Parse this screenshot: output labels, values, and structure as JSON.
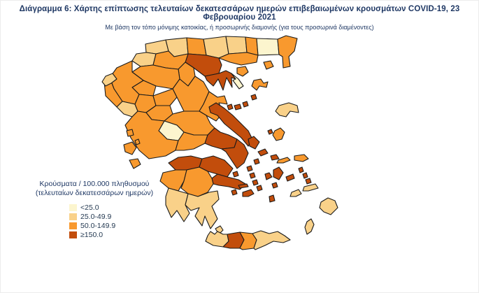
{
  "header": {
    "title": "Διάγραμμα 6: Χάρτης επίπτωσης τελευταίων δεκατεσσάρων ημερών επιβεβαιωμένων κρουσμάτων COVID-19, 23 Φεβρουαρίου 2021",
    "subtitle": "Με βάση τον τόπο μόνιμης κατοικίας, ή προσωρινής διαμονής (για τους προσωρινά διαμένοντες)"
  },
  "legend": {
    "title_line1": "Κρούσματα / 100.000 πληθυσμού",
    "title_line2": "(τελευταίων δεκατεσσάρων ημερών)",
    "items": [
      {
        "key": "lt25",
        "label": "<25.0",
        "color": "#FCF5CE"
      },
      {
        "key": "25_49",
        "label": "25.0-49.9",
        "color": "#F9D189"
      },
      {
        "key": "50_149",
        "label": "50.0-149.9",
        "color": "#F8992E"
      },
      {
        "key": "ge150",
        "label": "≥150.0",
        "color": "#C24D0C"
      }
    ]
  },
  "map": {
    "border_color": "#1a1a1a",
    "sea_color": "#ffffff",
    "regions": [
      {
        "id": "florina",
        "category": "25_49"
      },
      {
        "id": "kastoria",
        "category": "25_49"
      },
      {
        "id": "pella",
        "category": "25_49"
      },
      {
        "id": "kilkis",
        "category": "50_149"
      },
      {
        "id": "serres",
        "category": "25_49"
      },
      {
        "id": "drama",
        "category": "25_49"
      },
      {
        "id": "xanthi",
        "category": "50_149"
      },
      {
        "id": "rodopi",
        "category": "lt25"
      },
      {
        "id": "evros",
        "category": "50_149"
      },
      {
        "id": "kavala",
        "category": "50_149"
      },
      {
        "id": "thessaloniki",
        "category": "ge150"
      },
      {
        "id": "chalkidiki",
        "category": "ge150"
      },
      {
        "id": "athos",
        "category": "lt25"
      },
      {
        "id": "imathia",
        "category": "50_149"
      },
      {
        "id": "pieria",
        "category": "50_149"
      },
      {
        "id": "kozani",
        "category": "50_149"
      },
      {
        "id": "grevena",
        "category": "50_149"
      },
      {
        "id": "ioannina",
        "category": "50_149"
      },
      {
        "id": "thesprotia",
        "category": "50_149"
      },
      {
        "id": "preveza",
        "category": "25_49"
      },
      {
        "id": "arta",
        "category": "50_149"
      },
      {
        "id": "trikala",
        "category": "50_149"
      },
      {
        "id": "larissa",
        "category": "50_149"
      },
      {
        "id": "karditsa",
        "category": "50_149"
      },
      {
        "id": "magnisia",
        "category": "50_149"
      },
      {
        "id": "skiathos",
        "category": "ge150"
      },
      {
        "id": "skopelos",
        "category": "ge150"
      },
      {
        "id": "alonnisos",
        "category": "ge150"
      },
      {
        "id": "fthiotida",
        "category": "50_149"
      },
      {
        "id": "evrytania",
        "category": "lt25"
      },
      {
        "id": "aetolia",
        "category": "50_149"
      },
      {
        "id": "fokida",
        "category": "50_149"
      },
      {
        "id": "viotia",
        "category": "ge150"
      },
      {
        "id": "attiki",
        "category": "ge150"
      },
      {
        "id": "evia",
        "category": "ge150"
      },
      {
        "id": "achaia",
        "category": "ge150"
      },
      {
        "id": "korinthia",
        "category": "ge150"
      },
      {
        "id": "argolida",
        "category": "ge150"
      },
      {
        "id": "ilia",
        "category": "50_149"
      },
      {
        "id": "arkadia",
        "category": "50_149"
      },
      {
        "id": "messinia",
        "category": "25_49"
      },
      {
        "id": "lakonia",
        "category": "25_49"
      },
      {
        "id": "corfu",
        "category": "25_49"
      },
      {
        "id": "lefkada",
        "category": "50_149"
      },
      {
        "id": "ithaki",
        "category": "50_149"
      },
      {
        "id": "kefalonia",
        "category": "50_149"
      },
      {
        "id": "zakynthos",
        "category": "50_149"
      },
      {
        "id": "kythira",
        "category": "25_49"
      },
      {
        "id": "thasos",
        "category": "50_149"
      },
      {
        "id": "samothraki",
        "category": "50_149"
      },
      {
        "id": "limnos",
        "category": "50_149"
      },
      {
        "id": "agios_efstratios",
        "category": "ge150"
      },
      {
        "id": "lesvos",
        "category": "25_49"
      },
      {
        "id": "psara",
        "category": "ge150"
      },
      {
        "id": "chios",
        "category": "50_149"
      },
      {
        "id": "samos",
        "category": "50_149"
      },
      {
        "id": "ikaria",
        "category": "50_149"
      },
      {
        "id": "andros",
        "category": "ge150"
      },
      {
        "id": "tinos",
        "category": "ge150"
      },
      {
        "id": "mykonos",
        "category": "ge150"
      },
      {
        "id": "syros",
        "category": "ge150"
      },
      {
        "id": "kea",
        "category": "ge150"
      },
      {
        "id": "kythnos",
        "category": "ge150"
      },
      {
        "id": "serifos",
        "category": "ge150"
      },
      {
        "id": "sifnos",
        "category": "ge150"
      },
      {
        "id": "milos",
        "category": "ge150"
      },
      {
        "id": "paros",
        "category": "ge150"
      },
      {
        "id": "naxos",
        "category": "ge150"
      },
      {
        "id": "ios",
        "category": "ge150"
      },
      {
        "id": "santorini",
        "category": "ge150"
      },
      {
        "id": "amorgos",
        "category": "ge150"
      },
      {
        "id": "patmos",
        "category": "ge150"
      },
      {
        "id": "leros",
        "category": "ge150"
      },
      {
        "id": "kalymnos",
        "category": "ge150"
      },
      {
        "id": "kos",
        "category": "25_49"
      },
      {
        "id": "astypalea",
        "category": "25_49"
      },
      {
        "id": "rhodes",
        "category": "25_49"
      },
      {
        "id": "karpathos",
        "category": "25_49"
      },
      {
        "id": "aegina",
        "category": "ge150"
      },
      {
        "id": "hydra",
        "category": "ge150"
      },
      {
        "id": "spetses",
        "category": "ge150"
      },
      {
        "id": "chania",
        "category": "25_49"
      },
      {
        "id": "rethymno",
        "category": "ge150"
      },
      {
        "id": "heraklion",
        "category": "50_149"
      },
      {
        "id": "lasithi",
        "category": "25_49"
      }
    ]
  }
}
